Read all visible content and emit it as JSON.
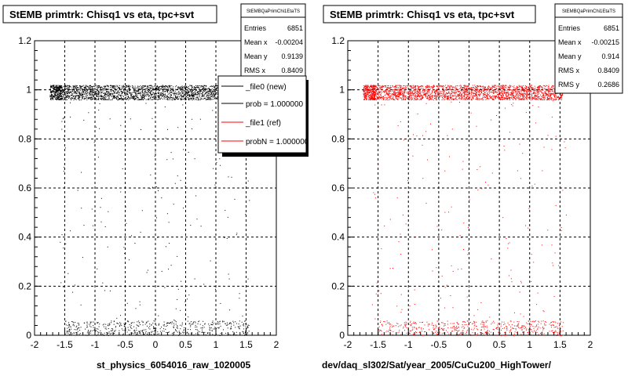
{
  "panels": [
    {
      "title": "StEMB primtrk: Chisq1 vs eta, tpc+svt",
      "stats": {
        "name": "StEMBQaPrimChi1EtaTS",
        "rows": [
          {
            "label": "Entries",
            "value": "6851"
          },
          {
            "label": "Mean x",
            "value": "-0.00204"
          },
          {
            "label": "Mean y",
            "value": "0.9139"
          },
          {
            "label": "RMS x",
            "value": "0.8409"
          }
        ]
      },
      "legend": [
        {
          "label": "_file0 (new)",
          "color": "#000000"
        },
        {
          "label": "prob = 1.000000",
          "color": "#000000"
        },
        {
          "label": "_file1 (ref)",
          "color": "#ff0000"
        },
        {
          "label": "probN = 1.000000",
          "color": "#ff0000"
        }
      ],
      "footer": "st_physics_6054016_raw_1020005"
    },
    {
      "title": "StEMB primtrk: Chisq1 vs eta, tpc+svt",
      "stats": {
        "name": "StEMBQaPrimChi1EtaTS",
        "rows": [
          {
            "label": "Entries",
            "value": "6851"
          },
          {
            "label": "Mean x",
            "value": "-0.00215"
          },
          {
            "label": "Mean y",
            "value": "0.914"
          },
          {
            "label": "RMS x",
            "value": "0.8409"
          },
          {
            "label": "RMS y",
            "value": "0.2686"
          }
        ]
      },
      "legend": [],
      "footer": "dev/daq_sl302/Sat/year_2005/CuCu200_HighTower/"
    }
  ],
  "chart_data": [
    {
      "type": "scatter",
      "title": "StEMB primtrk: Chisq1 vs eta, tpc+svt",
      "xlabel": "",
      "ylabel": "",
      "xlim": [
        -2,
        2
      ],
      "ylim": [
        0,
        1.2
      ],
      "x_ticks": [
        "-2",
        "-1.5",
        "-1",
        "-0.5",
        "0",
        "0.5",
        "1",
        "1.5",
        "2"
      ],
      "y_ticks": [
        "0",
        "0.2",
        "0.4",
        "0.6",
        "0.8",
        "1",
        "1.2"
      ],
      "grid": true,
      "marker_color": "#000000",
      "entries": 6851,
      "bands": [
        {
          "x": [
            -1.6,
            1.55
          ],
          "y": [
            0.96,
            1.02
          ],
          "density": "dense"
        },
        {
          "x": [
            -1.5,
            1.55
          ],
          "y": [
            0.0,
            0.06
          ],
          "density": "medium"
        },
        {
          "x": [
            -1.6,
            1.6
          ],
          "y": [
            0.06,
            0.96
          ],
          "density": "sparse"
        }
      ]
    },
    {
      "type": "scatter",
      "title": "StEMB primtrk: Chisq1 vs eta, tpc+svt",
      "xlabel": "",
      "ylabel": "",
      "xlim": [
        -2,
        2
      ],
      "ylim": [
        0,
        1.2
      ],
      "x_ticks": [
        "-2",
        "-1.5",
        "-1",
        "-0.5",
        "0",
        "0.5",
        "1",
        "1.5",
        "2"
      ],
      "y_ticks": [
        "0",
        "0.2",
        "0.4",
        "0.6",
        "0.8",
        "1",
        "1.2"
      ],
      "grid": true,
      "marker_color": "#ff0000",
      "entries": 6851,
      "bands": [
        {
          "x": [
            -1.6,
            1.55
          ],
          "y": [
            0.96,
            1.02
          ],
          "density": "dense"
        },
        {
          "x": [
            -1.5,
            1.55
          ],
          "y": [
            0.0,
            0.06
          ],
          "density": "medium"
        },
        {
          "x": [
            -1.6,
            1.6
          ],
          "y": [
            0.06,
            0.96
          ],
          "density": "sparse"
        }
      ]
    }
  ]
}
